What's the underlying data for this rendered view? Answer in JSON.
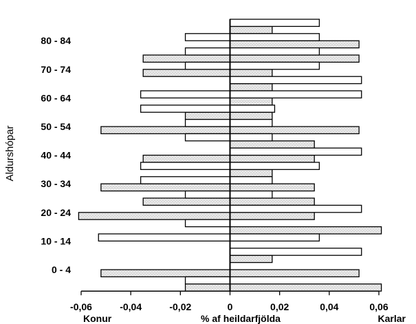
{
  "chart_data": {
    "type": "bar",
    "orientation": "horizontal",
    "subtype": "population-pyramid",
    "ylabel": "Aldurshópar",
    "xlabel": "% af heildarfjölda",
    "left_label": "Konur",
    "right_label": "Karlar",
    "xlim": [
      -0.06,
      0.06
    ],
    "x_ticks": [
      -0.06,
      -0.04,
      -0.02,
      0,
      0.02,
      0.04,
      0.06
    ],
    "x_tick_labels": [
      "-0,06",
      "-0,04",
      "-0,02",
      "0",
      "0,02",
      "0,04",
      "0,06"
    ],
    "y_tick_labels": [
      "0 - 4",
      "10 - 14",
      "20 - 24",
      "30 - 34",
      "40 - 44",
      "50 - 54",
      "60 - 64",
      "70 - 74",
      "80 - 84"
    ],
    "y_tick_rows": [
      1,
      3,
      5,
      7,
      9,
      11,
      13,
      15,
      17
    ],
    "series": [
      {
        "fill": "dotted",
        "rows": [
          {
            "left": -0.018,
            "right": 0.061
          },
          {
            "left": -0.052,
            "right": 0.052
          },
          {
            "left": 0,
            "right": 0.017
          },
          {
            "left": 0,
            "right": 0
          },
          {
            "left": 0,
            "right": 0.061
          },
          {
            "left": -0.061,
            "right": 0.034
          },
          {
            "left": -0.035,
            "right": 0.034
          },
          {
            "left": -0.052,
            "right": 0.034
          },
          {
            "left": 0,
            "right": 0.017
          },
          {
            "left": -0.035,
            "right": 0.034
          },
          {
            "left": 0,
            "right": 0.034
          },
          {
            "left": -0.052,
            "right": 0.052
          },
          {
            "left": -0.018,
            "right": 0.017
          },
          {
            "left": 0,
            "right": 0.017
          },
          {
            "left": 0,
            "right": 0.017
          },
          {
            "left": -0.035,
            "right": 0.017
          },
          {
            "left": -0.035,
            "right": 0.052
          },
          {
            "left": 0,
            "right": 0.052
          },
          {
            "left": 0,
            "right": 0.017
          }
        ]
      },
      {
        "fill": "white",
        "rows": [
          {
            "left": -0.018,
            "right": 0
          },
          {
            "left": 0,
            "right": 0
          },
          {
            "left": 0,
            "right": 0.053
          },
          {
            "left": -0.053,
            "right": 0.036
          },
          {
            "left": -0.018,
            "right": 0
          },
          {
            "left": 0,
            "right": 0.053
          },
          {
            "left": -0.018,
            "right": 0.017
          },
          {
            "left": -0.036,
            "right": 0.017
          },
          {
            "left": -0.036,
            "right": 0.036
          },
          {
            "left": 0,
            "right": 0.053
          },
          {
            "left": -0.018,
            "right": 0.017
          },
          {
            "left": -0.018,
            "right": 0.017
          },
          {
            "left": -0.036,
            "right": 0.018
          },
          {
            "left": -0.036,
            "right": 0.053
          },
          {
            "left": 0,
            "right": 0.053
          },
          {
            "left": -0.018,
            "right": 0.036
          },
          {
            "left": -0.018,
            "right": 0.036
          },
          {
            "left": -0.018,
            "right": 0.036
          },
          {
            "left": 0,
            "right": 0.036
          }
        ]
      }
    ],
    "colors": {
      "dotted_bg": "#d9d9d9",
      "dot": "#ffffff",
      "outline": "#000000",
      "white": "#ffffff"
    }
  }
}
